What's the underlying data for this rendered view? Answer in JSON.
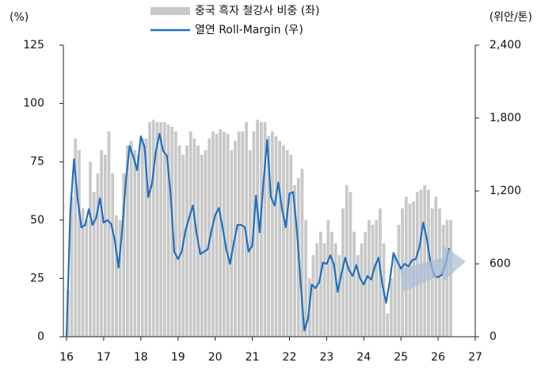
{
  "chart_data": {
    "type": "bar_line",
    "y_unit_label": "(%)",
    "y2_unit_label": "(위안/톤)",
    "x": [
      16,
      16.1,
      16.2,
      16.3,
      16.4,
      16.5,
      16.6,
      16.7,
      16.8,
      16.9,
      17,
      17.1,
      17.2,
      17.3,
      17.4,
      17.5,
      17.6,
      17.7,
      17.8,
      17.9,
      18,
      18.1,
      18.2,
      18.3,
      18.4,
      18.5,
      18.6,
      18.7,
      18.8,
      18.9,
      19,
      19.1,
      19.2,
      19.3,
      19.4,
      19.5,
      19.6,
      19.7,
      19.8,
      19.9,
      20,
      20.1,
      20.2,
      20.3,
      20.4,
      20.5,
      20.6,
      20.7,
      20.8,
      20.9,
      21,
      21.1,
      21.2,
      21.3,
      21.4,
      21.5,
      21.6,
      21.7,
      21.8,
      21.9,
      22,
      22.1,
      22.2,
      22.3,
      22.4,
      22.5,
      22.6,
      22.7,
      22.8,
      22.9,
      23,
      23.1,
      23.2,
      23.3,
      23.4,
      23.5,
      23.6,
      23.7,
      23.8,
      23.9,
      24,
      24.1,
      24.2,
      24.3,
      24.4,
      24.5,
      24.6,
      24.7,
      24.8,
      24.9,
      25,
      25.1,
      25.2,
      25.3,
      25.4,
      25.5,
      25.6,
      25.7,
      25.8,
      25.9,
      26,
      26.1,
      26.2,
      26.3
    ],
    "series": [
      {
        "name": "중국 흑자 철강사 비중 (좌)",
        "color": "#c8c8c8",
        "kind": "bar",
        "values": [
          20,
          60,
          85,
          80,
          55,
          50,
          75,
          62,
          70,
          80,
          78,
          88,
          70,
          52,
          50,
          70,
          82,
          84,
          80,
          78,
          85,
          85,
          92,
          93,
          92,
          92,
          92,
          91,
          90,
          88,
          82,
          78,
          82,
          88,
          85,
          82,
          78,
          80,
          85,
          88,
          87,
          89,
          88,
          87,
          80,
          84,
          88,
          88,
          92,
          80,
          88,
          93,
          92,
          92,
          86,
          88,
          86,
          84,
          82,
          80,
          78,
          65,
          68,
          72,
          50,
          25,
          35,
          40,
          45,
          40,
          50,
          45,
          40,
          35,
          55,
          65,
          62,
          45,
          35,
          40,
          45,
          50,
          48,
          50,
          55,
          40,
          10,
          25,
          35,
          48,
          55,
          60,
          57,
          58,
          62,
          63,
          65,
          63,
          55,
          60,
          55,
          48,
          50,
          50
        ]
      },
      {
        "name": "열연 Roll-Margin (우)",
        "color": "#1f6fc0",
        "kind": "line",
        "axis": "y2",
        "values": [
          0,
          1020,
          1460,
          1130,
          900,
          920,
          1050,
          920,
          980,
          1140,
          940,
          960,
          930,
          790,
          570,
          890,
          1300,
          1570,
          1480,
          1370,
          1650,
          1560,
          1150,
          1260,
          1520,
          1670,
          1530,
          1490,
          1180,
          700,
          640,
          700,
          870,
          980,
          1080,
          850,
          680,
          700,
          720,
          870,
          1000,
          1060,
          900,
          720,
          600,
          770,
          920,
          920,
          900,
          700,
          750,
          1160,
          860,
          1270,
          1620,
          1150,
          1080,
          1270,
          1050,
          900,
          1180,
          1190,
          880,
          450,
          50,
          150,
          430,
          400,
          450,
          610,
          600,
          670,
          590,
          370,
          520,
          650,
          550,
          500,
          590,
          480,
          430,
          500,
          470,
          580,
          650,
          430,
          280,
          460,
          690,
          620,
          560,
          600,
          580,
          630,
          640,
          740,
          940,
          800,
          600,
          500,
          490,
          510,
          600,
          730
        ]
      }
    ],
    "xlim": [
      16,
      27
    ],
    "xticks": [
      16,
      17,
      18,
      19,
      20,
      21,
      22,
      23,
      24,
      25,
      26,
      27
    ],
    "ylim": [
      0,
      125
    ],
    "yticks": [
      0,
      25,
      50,
      75,
      100,
      125
    ],
    "y2lim": [
      0,
      2400
    ],
    "y2ticks": [
      0,
      600,
      {
        "value": 1200,
        "label": "1,200"
      },
      {
        "value": 1800,
        "label": "1,800"
      },
      {
        "value": 2400,
        "label": "2,400"
      }
    ]
  }
}
